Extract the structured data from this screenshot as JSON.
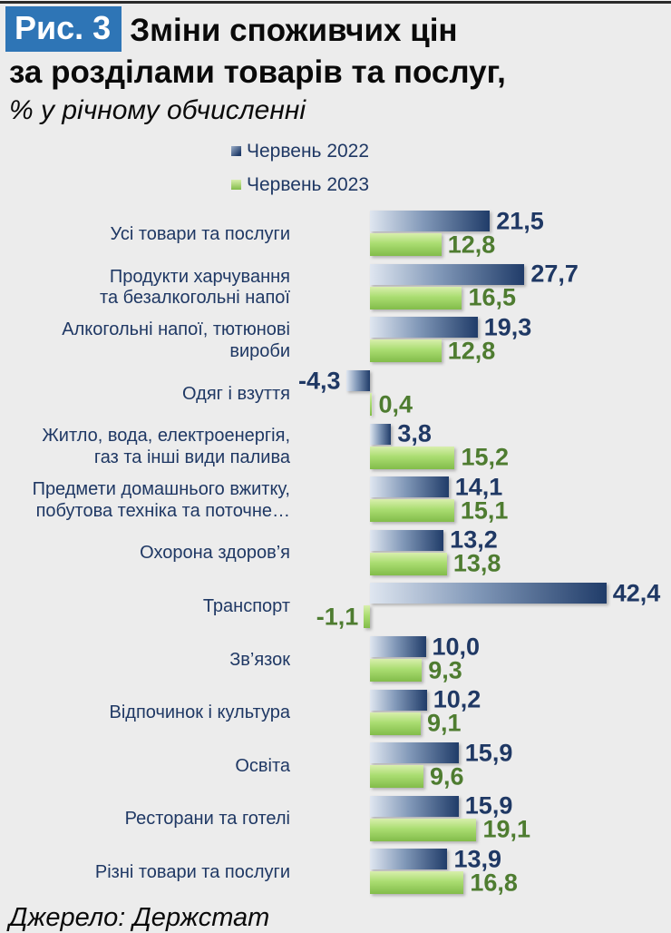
{
  "header": {
    "badge": "Рис. 3",
    "title_line1": "Зміни споживчих цін",
    "title_line2": "за розділами товарів та послуг,",
    "subtitle": "% у річному обчисленні"
  },
  "footer": {
    "source": "Джерело: Держстат"
  },
  "colors": {
    "background": "#ececec",
    "badge_bg": "#2e75b6",
    "badge_text": "#ffffff",
    "title_text": "#0a0a0a",
    "navy_text": "#1f3864",
    "green_text": "#4e7c30",
    "bar2022_light": "#dfe6f0",
    "bar2022_mid": "#8198b8",
    "bar2022_dark": "#203c69",
    "bar2023_light": "#d9efad",
    "bar2023_mid": "#aadd71",
    "bar2023_dark": "#82bc4a"
  },
  "chart_data": {
    "type": "bar",
    "orientation": "horizontal",
    "title": "Зміни споживчих цін за розділами товарів та послуг, % у річному обчисленні",
    "legend_position": "top",
    "grid": false,
    "xlim": [
      -5,
      45
    ],
    "categories": [
      "Усі товари та послуги",
      "Продукти харчування\nта безалкогольні напої",
      "Алкогольні напої, тютюнові\nвироби",
      "Одяг і взуття",
      "Житло, вода, електроенергія,\nгаз та інші види палива",
      "Предмети домашнього вжитку,\nпобутова техніка та поточне…",
      "Охорона здоров’я",
      "Транспорт",
      "Зв’язок",
      "Відпочинок і культура",
      "Освіта",
      "Ресторани та готелі",
      "Різні товари та послуги"
    ],
    "series": [
      {
        "name": "Червень 2022",
        "color": "#203c69",
        "values": [
          21.5,
          27.7,
          19.3,
          -4.3,
          3.8,
          14.1,
          13.2,
          42.4,
          10.0,
          10.2,
          15.9,
          15.9,
          13.9
        ],
        "labels": [
          "21,5",
          "27,7",
          "19,3",
          "-4,3",
          "3,8",
          "14,1",
          "13,2",
          "42,4",
          "10,0",
          "10,2",
          "15,9",
          "15,9",
          "13,9"
        ]
      },
      {
        "name": "Червень 2023",
        "color": "#92d050",
        "values": [
          12.8,
          16.5,
          12.8,
          0.4,
          15.2,
          15.1,
          13.8,
          -1.1,
          9.3,
          9.1,
          9.6,
          19.1,
          16.8
        ],
        "labels": [
          "12,8",
          "16,5",
          "12,8",
          "0,4",
          "15,2",
          "15,1",
          "13,8",
          "-1,1",
          "9,3",
          "9,1",
          "9,6",
          "19,1",
          "16,8"
        ]
      }
    ]
  }
}
